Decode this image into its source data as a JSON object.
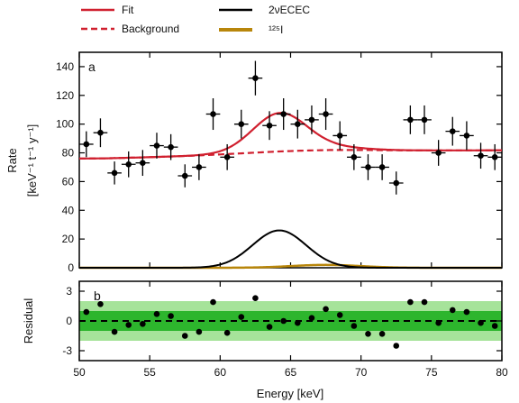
{
  "chart_data": {
    "type": "scatter",
    "xlabel": "Energy [keV]",
    "ylabel_line1": "Rate",
    "ylabel_line2": "[keV⁻¹ t⁻¹ y⁻¹]",
    "residual_label": "Residual",
    "xlim": [
      50,
      80
    ],
    "ylim_top": [
      0,
      150
    ],
    "ylim_bottom": [
      -4,
      4
    ],
    "x_ticks": [
      "50",
      "55",
      "60",
      "65",
      "70",
      "75",
      "80"
    ],
    "y_ticks_top": [
      "0",
      "20",
      "40",
      "60",
      "80",
      "100",
      "120",
      "140"
    ],
    "y_ticks_bottom": [
      "-3",
      "0",
      "3"
    ],
    "panel_labels": [
      "a",
      "b"
    ],
    "legend": {
      "fit": "Fit",
      "background": "Background",
      "signal": "2νECEC",
      "iodine": "¹²⁵I"
    },
    "colors": {
      "fit": "#d0202f",
      "background": "#d0202f",
      "signal": "#000000",
      "iodine": "#b8860b",
      "band_1sigma": "#2db52d",
      "band_2sigma": "#a6e39a",
      "points": "#000000"
    },
    "points_top": [
      {
        "x": 50.5,
        "y": 86,
        "err": 9
      },
      {
        "x": 51.5,
        "y": 94,
        "err": 10
      },
      {
        "x": 52.5,
        "y": 66,
        "err": 8
      },
      {
        "x": 53.5,
        "y": 72,
        "err": 9
      },
      {
        "x": 54.5,
        "y": 73,
        "err": 9
      },
      {
        "x": 55.5,
        "y": 85,
        "err": 9
      },
      {
        "x": 56.5,
        "y": 84,
        "err": 9
      },
      {
        "x": 57.5,
        "y": 64,
        "err": 8
      },
      {
        "x": 58.5,
        "y": 70,
        "err": 9
      },
      {
        "x": 59.5,
        "y": 107,
        "err": 11
      },
      {
        "x": 60.5,
        "y": 77,
        "err": 9
      },
      {
        "x": 61.5,
        "y": 100,
        "err": 10
      },
      {
        "x": 62.5,
        "y": 132,
        "err": 12
      },
      {
        "x": 63.5,
        "y": 99,
        "err": 10
      },
      {
        "x": 64.5,
        "y": 107,
        "err": 11
      },
      {
        "x": 65.5,
        "y": 100,
        "err": 10
      },
      {
        "x": 66.5,
        "y": 103,
        "err": 10
      },
      {
        "x": 67.5,
        "y": 107,
        "err": 11
      },
      {
        "x": 68.5,
        "y": 92,
        "err": 10
      },
      {
        "x": 69.5,
        "y": 77,
        "err": 9
      },
      {
        "x": 70.5,
        "y": 70,
        "err": 9
      },
      {
        "x": 71.5,
        "y": 70,
        "err": 9
      },
      {
        "x": 72.5,
        "y": 59,
        "err": 8
      },
      {
        "x": 73.5,
        "y": 103,
        "err": 10
      },
      {
        "x": 74.5,
        "y": 103,
        "err": 10
      },
      {
        "x": 75.5,
        "y": 80,
        "err": 9
      },
      {
        "x": 76.5,
        "y": 95,
        "err": 10
      },
      {
        "x": 77.5,
        "y": 92,
        "err": 10
      },
      {
        "x": 78.5,
        "y": 78,
        "err": 9
      },
      {
        "x": 79.5,
        "y": 77,
        "err": 9
      }
    ],
    "residuals": [
      {
        "x": 50.5,
        "y": 0.9
      },
      {
        "x": 51.5,
        "y": 1.7
      },
      {
        "x": 52.5,
        "y": -1.1
      },
      {
        "x": 53.5,
        "y": -0.4
      },
      {
        "x": 54.5,
        "y": -0.3
      },
      {
        "x": 55.5,
        "y": 0.7
      },
      {
        "x": 56.5,
        "y": 0.5
      },
      {
        "x": 57.5,
        "y": -1.5
      },
      {
        "x": 58.5,
        "y": -1.1
      },
      {
        "x": 59.5,
        "y": 1.9
      },
      {
        "x": 60.5,
        "y": -1.2
      },
      {
        "x": 61.5,
        "y": 0.4
      },
      {
        "x": 62.5,
        "y": 2.3
      },
      {
        "x": 63.5,
        "y": -0.6
      },
      {
        "x": 64.5,
        "y": 0.0
      },
      {
        "x": 65.5,
        "y": -0.2
      },
      {
        "x": 66.5,
        "y": 0.3
      },
      {
        "x": 67.5,
        "y": 1.2
      },
      {
        "x": 68.5,
        "y": 0.6
      },
      {
        "x": 69.5,
        "y": -0.5
      },
      {
        "x": 70.5,
        "y": -1.3
      },
      {
        "x": 71.5,
        "y": -1.3
      },
      {
        "x": 72.5,
        "y": -2.5
      },
      {
        "x": 73.5,
        "y": 1.9
      },
      {
        "x": 74.5,
        "y": 1.9
      },
      {
        "x": 75.5,
        "y": -0.2
      },
      {
        "x": 76.5,
        "y": 1.1
      },
      {
        "x": 77.5,
        "y": 0.9
      },
      {
        "x": 78.5,
        "y": -0.2
      },
      {
        "x": 79.5,
        "y": -0.5
      }
    ],
    "background_curve": {
      "x": [
        50,
        52,
        54,
        56,
        58,
        60,
        62,
        64,
        66,
        68,
        70,
        72,
        74,
        76,
        78,
        80
      ],
      "y": [
        76,
        76.2,
        76.7,
        77.3,
        78,
        78.9,
        79.9,
        80.9,
        81.6,
        82,
        82,
        81.8,
        81.7,
        81.7,
        81.7,
        81.8
      ]
    },
    "signal_peak": {
      "mean": 64.2,
      "sigma": 1.9,
      "amplitude": 26
    },
    "iodine_peak": {
      "mean": 67.5,
      "sigma": 2.4,
      "amplitude": 2
    }
  }
}
